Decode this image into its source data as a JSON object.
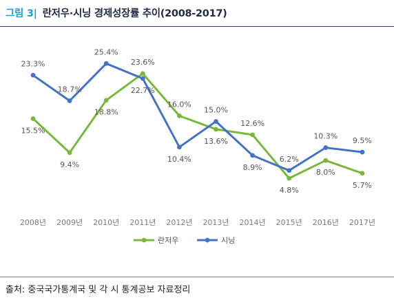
{
  "figure": {
    "label": "그림 3|",
    "title": "란저우·시닝 경제성장률 추이(2008-2017)"
  },
  "source": "출처: 중국국가통계국 및 각 시 통계공보 자료정리",
  "chart_data": {
    "type": "line",
    "categories": [
      "2008년",
      "2009년",
      "2010년",
      "2011년",
      "2012년",
      "2013년",
      "2014년",
      "2015년",
      "2016년",
      "2017년"
    ],
    "series": [
      {
        "name": "란저우",
        "color": "#79b83a",
        "values": [
          15.5,
          9.4,
          18.8,
          23.6,
          16.0,
          13.6,
          12.6,
          4.8,
          8.0,
          5.7
        ]
      },
      {
        "name": "시닝",
        "color": "#4472c4",
        "values": [
          23.3,
          18.7,
          25.4,
          22.7,
          10.4,
          15.0,
          8.9,
          6.2,
          10.3,
          9.5
        ]
      }
    ],
    "value_suffix": "%",
    "ylim": [
      0,
      30
    ],
    "grid": false,
    "legend": "bottom"
  }
}
